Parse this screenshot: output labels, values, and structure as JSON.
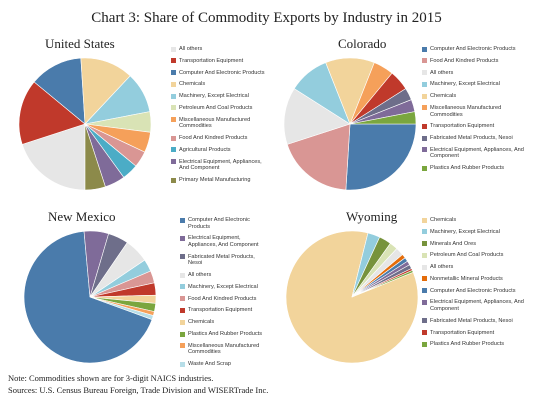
{
  "title": "Chart 3: Share of Commodity Exports by Industry in 2015",
  "colors": {
    "All others": "#e6e6e6",
    "Transportation Equipment": "#c0392b",
    "Computer And Electronic Products": "#4a7bab",
    "Chemicals": "#f2d49b",
    "Machinery, Except Electrical": "#93cddd",
    "Petroleum And Coal Products": "#d9e3b5",
    "Miscellaneous Manufactured Commodities": "#f5a05a",
    "Food And Kindred Products": "#d99694",
    "Agricultural Products": "#4bacc6",
    "Electrical Equipment, Appliances, And Component": "#7f6b99",
    "Primary Metal Manufacturing": "#8c8a4a",
    "Fabricated Metal Products, Nesoi": "#6e6e8a",
    "Plastics And Rubber Products": "#7aa63e",
    "Minerals And Ores": "#77933c",
    "Nonmetallic Mineral Products": "#e46c0a",
    "Waste And Scrap": "#b7dee8"
  },
  "chart_data": [
    {
      "type": "pie",
      "title": "United States",
      "slices": [
        {
          "label": "All others",
          "value": 20
        },
        {
          "label": "Transportation Equipment",
          "value": 16
        },
        {
          "label": "Computer And Electronic Products",
          "value": 13
        },
        {
          "label": "Chemicals",
          "value": 13
        },
        {
          "label": "Machinery, Except Electrical",
          "value": 10
        },
        {
          "label": "Petroleum And Coal Products",
          "value": 5
        },
        {
          "label": "Miscellaneous Manufactured Commodities",
          "value": 5
        },
        {
          "label": "Food And Kindred Products",
          "value": 4
        },
        {
          "label": "Agricultural Products",
          "value": 4
        },
        {
          "label": "Electrical Equipment, Appliances, And Component",
          "value": 5
        },
        {
          "label": "Primary Metal Manufacturing",
          "value": 5
        }
      ]
    },
    {
      "type": "pie",
      "title": "Colorado",
      "slices": [
        {
          "label": "Computer And Electronic Products",
          "value": 26
        },
        {
          "label": "Food And Kindred Products",
          "value": 19
        },
        {
          "label": "All others",
          "value": 14
        },
        {
          "label": "Machinery, Except Electrical",
          "value": 10
        },
        {
          "label": "Chemicals",
          "value": 12
        },
        {
          "label": "Miscellaneous Manufactured Commodities",
          "value": 5
        },
        {
          "label": "Transportation Equipment",
          "value": 5
        },
        {
          "label": "Fabricated Metal Products, Nesoi",
          "value": 3
        },
        {
          "label": "Electrical Equipment, Appliances, And Component",
          "value": 3
        },
        {
          "label": "Plastics And Rubber Products",
          "value": 3
        }
      ]
    },
    {
      "type": "pie",
      "title": "New Mexico",
      "slices": [
        {
          "label": "Computer And Electronic Products",
          "value": 68
        },
        {
          "label": "Electrical Equipment, Appliances, And Component",
          "value": 6
        },
        {
          "label": "Fabricated Metal Products, Nesoi",
          "value": 5
        },
        {
          "label": "All others",
          "value": 6
        },
        {
          "label": "Machinery, Except Electrical",
          "value": 3
        },
        {
          "label": "Food And Kindred Products",
          "value": 3
        },
        {
          "label": "Transportation Equipment",
          "value": 3
        },
        {
          "label": "Chemicals",
          "value": 2
        },
        {
          "label": "Plastics And Rubber Products",
          "value": 2
        },
        {
          "label": "Miscellaneous Manufactured Commodities",
          "value": 1
        },
        {
          "label": "Waste And Scrap",
          "value": 1
        }
      ]
    },
    {
      "type": "pie",
      "title": "Wyoming",
      "slices": [
        {
          "label": "Chemicals",
          "value": 85
        },
        {
          "label": "Machinery, Except Electrical",
          "value": 3
        },
        {
          "label": "Minerals And Ores",
          "value": 3
        },
        {
          "label": "Petroleum And Coal Products",
          "value": 2
        },
        {
          "label": "All others",
          "value": 2
        },
        {
          "label": "Nonmetallic Mineral Products",
          "value": 1
        },
        {
          "label": "Computer And Electronic Products",
          "value": 1
        },
        {
          "label": "Electrical Equipment, Appliances, And Component",
          "value": 1
        },
        {
          "label": "Fabricated Metal Products, Nesoi",
          "value": 1
        },
        {
          "label": "Transportation Equipment",
          "value": 0.5
        },
        {
          "label": "Plastics And Rubber Products",
          "value": 0.5
        }
      ]
    }
  ],
  "notes": [
    "Note: Commodities shown are for 3-digit NAICS industries.",
    "Sources: U.S. Census Bureau Foreign, Trade Division and WISERTrade Inc."
  ]
}
